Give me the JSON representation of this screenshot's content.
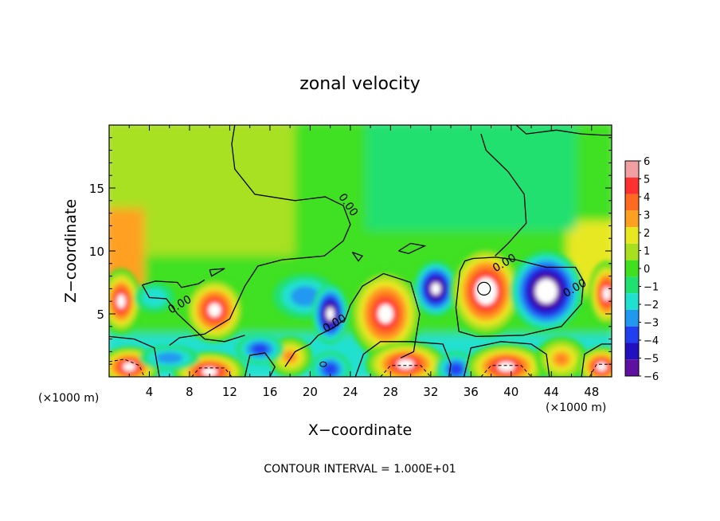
{
  "chart_data": {
    "type": "heatmap",
    "title": "zonal velocity",
    "xlabel": "X−coordinate",
    "ylabel": "Z−coordinate",
    "x_unit_left": "(×1000 m)",
    "x_unit_right": "(×1000 m)",
    "xlim": [
      0,
      50
    ],
    "ylim": [
      0,
      20
    ],
    "x_ticks": [
      "4",
      "8",
      "12",
      "16",
      "20",
      "24",
      "28",
      "32",
      "36",
      "40",
      "44",
      "48"
    ],
    "x_tick_values": [
      4,
      8,
      12,
      16,
      20,
      24,
      28,
      32,
      36,
      40,
      44,
      48
    ],
    "y_ticks": [
      "5",
      "10",
      "15"
    ],
    "y_tick_values": [
      5,
      10,
      15
    ],
    "contour_labels": [
      {
        "text": "0.00",
        "x": 23.5,
        "z": 13.5
      },
      {
        "text": "0.00",
        "x": 7.2,
        "z": 5.5
      },
      {
        "text": "0.00",
        "x": 22.6,
        "z": 4.0
      },
      {
        "text": "0.00",
        "x": 39.5,
        "z": 8.8
      },
      {
        "text": "0.00",
        "x": 46.5,
        "z": 6.8
      }
    ],
    "colorbar": {
      "labels": [
        "6",
        "5",
        "4",
        "3",
        "2",
        "1",
        "0",
        "−1",
        "−2",
        "−3",
        "−4",
        "−5",
        "−6"
      ],
      "colors": [
        "#f0a0a0",
        "#ff3030",
        "#ff6a20",
        "#ffa020",
        "#e8e820",
        "#a8e020",
        "#40e020",
        "#20e070",
        "#20e0d0",
        "#2098f0",
        "#2040f0",
        "#2010c0",
        "#6010a0"
      ],
      "over_color": "#ffffff",
      "under_color": "#ffffff"
    },
    "footer": "CONTOUR INTERVAL = 1.000E+01",
    "grid": false
  }
}
